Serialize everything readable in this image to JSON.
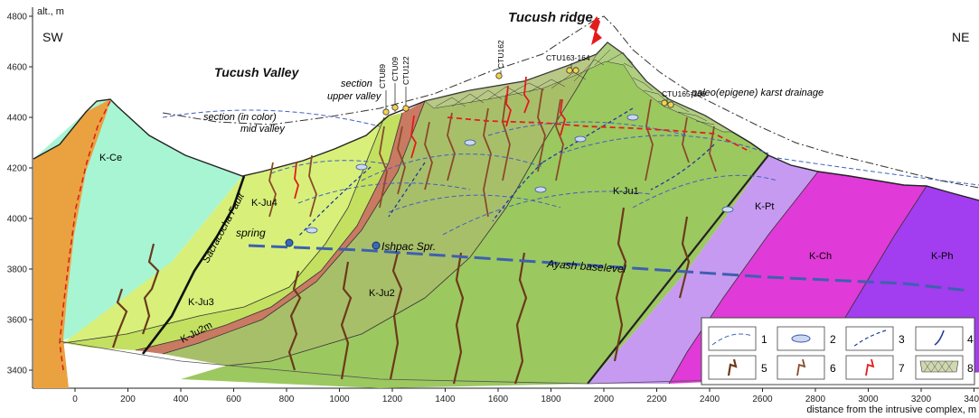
{
  "axis": {
    "y_label": "alt., m",
    "x_label": "distance from the intrusive complex, m",
    "y_ticks": [
      "4800",
      "4600",
      "4400",
      "4200",
      "4000",
      "3800",
      "3600",
      "3400"
    ],
    "x_ticks": [
      "0",
      "200",
      "400",
      "600",
      "800",
      "1000",
      "1200",
      "1400",
      "1600",
      "1800",
      "2000",
      "2200",
      "2400",
      "2600",
      "2800",
      "3000",
      "3200",
      "3400"
    ]
  },
  "directions": {
    "left": "SW",
    "right": "NE"
  },
  "places": {
    "ridge": "Tucush ridge",
    "valley": "Tucush Valley",
    "section_upper_1": "section",
    "section_upper_2": "upper valley",
    "section_mid_1": "section (in color)",
    "section_mid_2": "mid valley",
    "karst": "paleo(epigene) karst drainage",
    "spring": "spring",
    "ishpac": "Ishpac Spr.",
    "baselevel": "Ayash baselevel",
    "fault": "Sacracocha Fault"
  },
  "samples": [
    "CTU89",
    "CTU09",
    "CTU122",
    "CTU162",
    "CTU163-164",
    "CTU165-166"
  ],
  "units": {
    "kce": "K-Ce",
    "kju4": "K-Ju4",
    "kju3": "K-Ju3",
    "kju2m": "K-Ju2m",
    "kju2": "K-Ju2",
    "kju1": "K-Ju1",
    "kpt": "K-Pt",
    "kch": "K-Ch",
    "kph": "K-Ph"
  },
  "unit_colors": {
    "kce": "#a8f5d4",
    "kju4": "#d8f07a",
    "kju3": "#c4e060",
    "kju2m": "#c97a62",
    "kju2": "#a8bf6a",
    "kju1": "#9cc860",
    "kpt": "#c79af2",
    "kch": "#e03ad8",
    "kph": "#a33df0",
    "intrusive": "#e9a23f"
  },
  "legend": [
    "1",
    "2",
    "3",
    "4",
    "5",
    "6",
    "7",
    "8"
  ]
}
